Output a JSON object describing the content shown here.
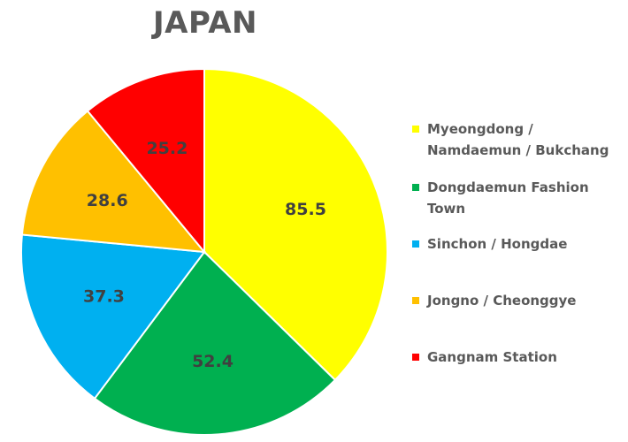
{
  "chart_data": {
    "type": "pie",
    "title": "JAPAN",
    "slices": [
      {
        "label": "Myeongdong / Namdaemun / Bukchang",
        "value": 85.5,
        "color": "#ffff00"
      },
      {
        "label": "Dongdaemun Fashion Town",
        "value": 52.4,
        "color": "#00b050"
      },
      {
        "label": "Sinchon / Hongdae",
        "value": 37.3,
        "color": "#00b0f0"
      },
      {
        "label": "Jongno / Cheonggye",
        "value": 28.6,
        "color": "#ffc000"
      },
      {
        "label": "Gangnam Station",
        "value": 25.2,
        "color": "#ff0000"
      }
    ],
    "start_angle": "12 o'clock",
    "direction": "clockwise",
    "legend_position": "right"
  }
}
